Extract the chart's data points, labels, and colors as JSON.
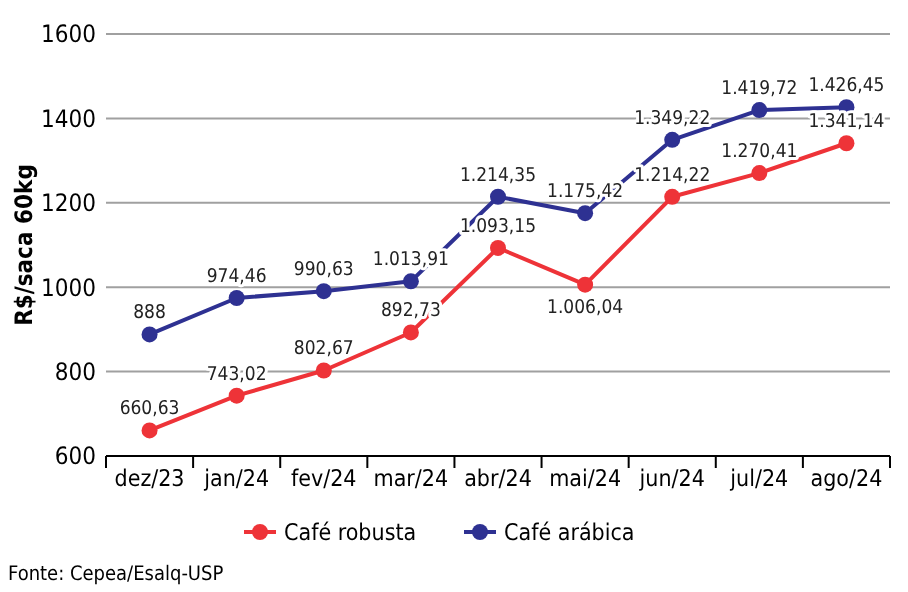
{
  "chart_data": {
    "type": "line",
    "ylabel": "R$/saca 60kg",
    "categories": [
      "dez/23",
      "jan/24",
      "fev/24",
      "mar/24",
      "abr/24",
      "mai/24",
      "jun/24",
      "jul/24",
      "ago/24"
    ],
    "series": [
      {
        "name": "Café robusta",
        "color": "#ee3338",
        "values": [
          660.63,
          743.02,
          802.67,
          892.73,
          1093.15,
          1006.04,
          1214.22,
          1270.41,
          1341.14
        ],
        "value_labels": [
          "660,63",
          "743,02",
          "802,67",
          "892,73",
          "1.093,15",
          "1.006,04",
          "1.214,22",
          "1.270,41",
          "1.341,14"
        ]
      },
      {
        "name": "Café arábica",
        "color": "#2e3192",
        "values": [
          888,
          974.46,
          990.63,
          1013.91,
          1214.35,
          1175.42,
          1349.22,
          1419.72,
          1426.45
        ],
        "value_labels": [
          "888",
          "974,46",
          "990,63",
          "1.013,91",
          "1.214,35",
          "1.175,42",
          "1.349,22",
          "1.419,72",
          "1.426,45"
        ]
      }
    ],
    "ylim": [
      600,
      1600
    ],
    "yticks": [
      600,
      800,
      1000,
      1200,
      1400,
      1600
    ],
    "grid": "y",
    "legend": "bottom",
    "marker": "circle",
    "line_style": "solid",
    "annotations": [
      "Fonte: Cepea/Esalq-USP"
    ]
  }
}
